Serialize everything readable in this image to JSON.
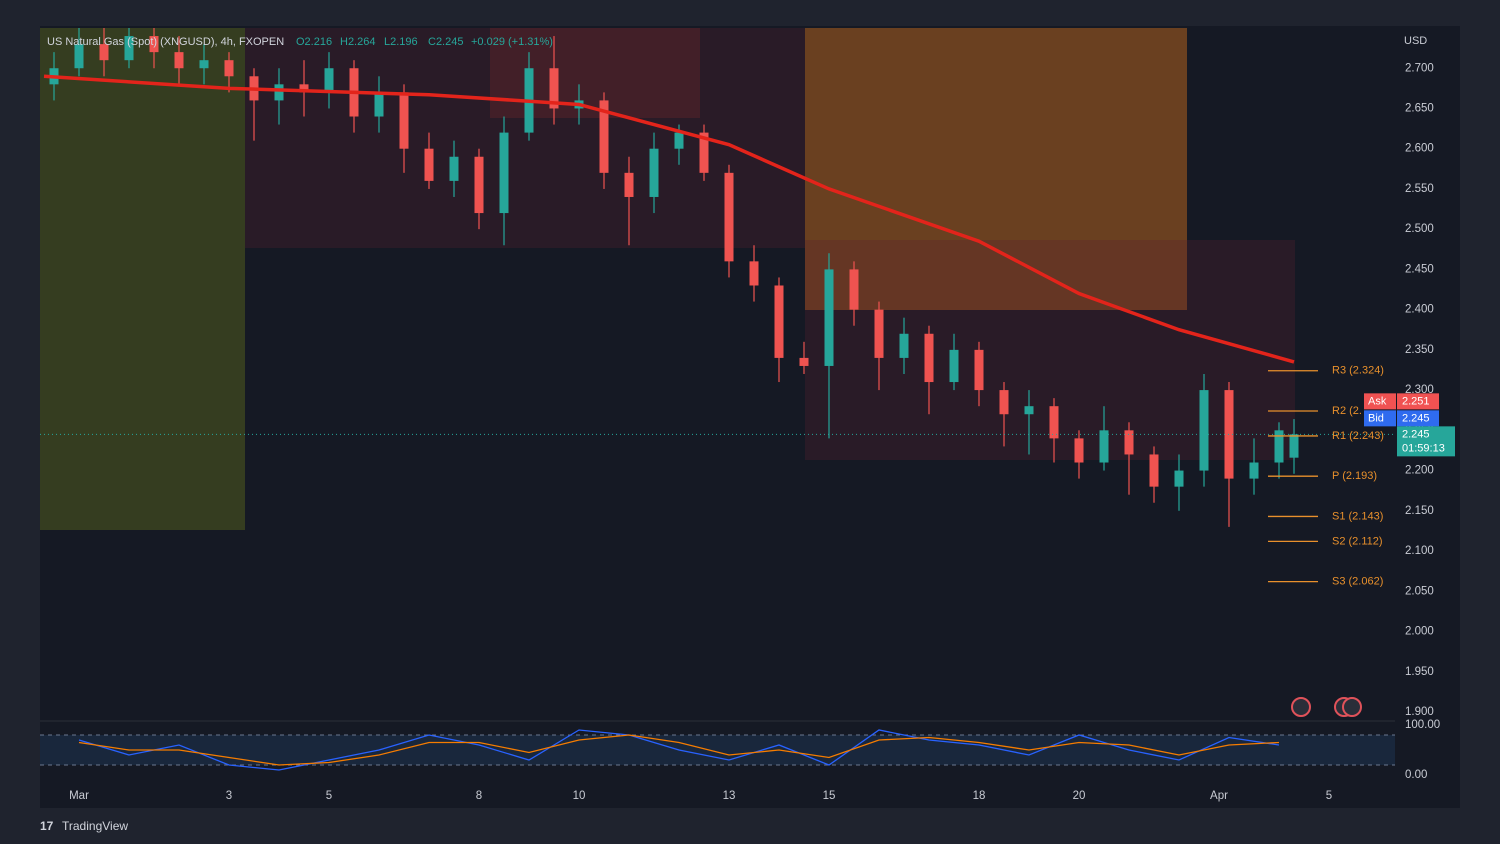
{
  "chart_data": {
    "type": "candlestick",
    "title": "US Natural Gas (Spot) (XNGUSD), 4h, FXOPEN",
    "ohlc_legend": {
      "open": "O2.216",
      "high": "H2.264",
      "low": "L2.196",
      "close": "C2.245",
      "change": "+0.029 (+1.31%)"
    },
    "x": [
      -0.5,
      0,
      0.5,
      1,
      1.5,
      2,
      2.5,
      3,
      3.5,
      4,
      4.5,
      5,
      5.5,
      6,
      6.5,
      7,
      7.5,
      8,
      8.5,
      9,
      9.5,
      10,
      10.5,
      11,
      11.5,
      12,
      12.5,
      13,
      13.5,
      14,
      14.5,
      15,
      15.5,
      16,
      16.5,
      17,
      17.5,
      18,
      18.5,
      19,
      19.5,
      20,
      20.5,
      21,
      21.5,
      22,
      22.5,
      23,
      23.5,
      24,
      24.3
    ],
    "open": [
      2.68,
      2.7,
      2.73,
      2.71,
      2.74,
      2.72,
      2.7,
      2.71,
      2.69,
      2.66,
      2.68,
      2.67,
      2.7,
      2.64,
      2.67,
      2.6,
      2.56,
      2.59,
      2.52,
      2.62,
      2.7,
      2.65,
      2.66,
      2.57,
      2.54,
      2.6,
      2.62,
      2.57,
      2.46,
      2.43,
      2.34,
      2.33,
      2.45,
      2.4,
      2.34,
      2.37,
      2.31,
      2.35,
      2.3,
      2.27,
      2.28,
      2.24,
      2.21,
      2.25,
      2.22,
      2.18,
      2.2,
      2.3,
      2.19,
      2.21,
      2.216
    ],
    "high": [
      2.72,
      2.75,
      2.75,
      2.75,
      2.75,
      2.74,
      2.73,
      2.72,
      2.7,
      2.7,
      2.71,
      2.72,
      2.71,
      2.69,
      2.68,
      2.62,
      2.61,
      2.6,
      2.64,
      2.72,
      2.74,
      2.68,
      2.67,
      2.59,
      2.62,
      2.63,
      2.63,
      2.58,
      2.48,
      2.44,
      2.36,
      2.47,
      2.46,
      2.41,
      2.39,
      2.38,
      2.37,
      2.36,
      2.31,
      2.3,
      2.29,
      2.25,
      2.28,
      2.26,
      2.23,
      2.22,
      2.32,
      2.31,
      2.24,
      2.26,
      2.264
    ],
    "low": [
      2.66,
      2.69,
      2.69,
      2.7,
      2.7,
      2.68,
      2.68,
      2.67,
      2.61,
      2.63,
      2.64,
      2.65,
      2.62,
      2.62,
      2.57,
      2.55,
      2.54,
      2.5,
      2.48,
      2.61,
      2.63,
      2.63,
      2.55,
      2.48,
      2.52,
      2.58,
      2.56,
      2.44,
      2.41,
      2.31,
      2.32,
      2.24,
      2.38,
      2.3,
      2.32,
      2.27,
      2.3,
      2.28,
      2.23,
      2.22,
      2.21,
      2.19,
      2.2,
      2.17,
      2.16,
      2.15,
      2.18,
      2.13,
      2.17,
      2.19,
      2.196
    ],
    "close": [
      2.7,
      2.73,
      2.71,
      2.74,
      2.72,
      2.7,
      2.71,
      2.69,
      2.66,
      2.68,
      2.67,
      2.7,
      2.64,
      2.67,
      2.6,
      2.56,
      2.59,
      2.52,
      2.62,
      2.7,
      2.65,
      2.66,
      2.57,
      2.54,
      2.6,
      2.62,
      2.57,
      2.46,
      2.43,
      2.34,
      2.33,
      2.45,
      2.4,
      2.34,
      2.37,
      2.31,
      2.35,
      2.3,
      2.27,
      2.28,
      2.24,
      2.21,
      2.25,
      2.22,
      2.18,
      2.2,
      2.3,
      2.19,
      2.21,
      2.25,
      2.245
    ],
    "up_color": "#26a69a",
    "down_color": "#ef5350",
    "xlim": [
      -0.78,
      26.32
    ],
    "xticks": [
      {
        "value": 0,
        "label": "Mar"
      },
      3,
      5,
      8,
      10,
      13,
      15,
      18,
      20,
      {
        "value": 22.8,
        "label": "Apr"
      },
      {
        "value": 25,
        "label": "5"
      }
    ],
    "ylim": [
      1.89,
      2.75
    ],
    "yticks": [
      {
        "value": 1.9,
        "label": "1.900"
      },
      {
        "value": 1.95,
        "label": "1.950"
      },
      {
        "value": 2.0,
        "label": "2.000"
      },
      {
        "value": 2.05,
        "label": "2.050"
      },
      {
        "value": 2.1,
        "label": "2.100"
      },
      {
        "value": 2.15,
        "label": "2.150"
      },
      {
        "value": 2.2,
        "label": "2.200"
      },
      {
        "value": 2.25,
        "label": "2.250"
      },
      {
        "value": 2.3,
        "label": "2.300"
      },
      {
        "value": 2.35,
        "label": "2.350"
      },
      {
        "value": 2.4,
        "label": "2.400"
      },
      {
        "value": 2.45,
        "label": "2.450"
      },
      {
        "value": 2.5,
        "label": "2.500"
      },
      {
        "value": 2.55,
        "label": "2.550"
      },
      {
        "value": 2.6,
        "label": "2.600"
      },
      {
        "value": 2.65,
        "label": "2.650"
      },
      {
        "value": 2.7,
        "label": "2.700"
      }
    ],
    "y_unit": "USD",
    "moving_average": {
      "color": "#e3241b",
      "x": [
        -0.7,
        3,
        7,
        10,
        13,
        15,
        18,
        20,
        22,
        24.3
      ],
      "values": [
        2.69,
        2.675,
        2.667,
        2.655,
        2.605,
        2.55,
        2.485,
        2.42,
        2.375,
        2.335
      ]
    },
    "pivots": [
      {
        "value": 2.324,
        "label": "R3 (2.324)"
      },
      {
        "value": 2.274,
        "label": "R2 (2."
      },
      {
        "value": 2.243,
        "label": "R1 (2.243)"
      },
      {
        "value": 2.193,
        "label": "P (2.193)"
      },
      {
        "value": 2.143,
        "label": "S1 (2.143)"
      },
      {
        "value": 2.112,
        "label": "S2 (2.112)"
      },
      {
        "value": 2.062,
        "label": "S3 (2.062)"
      }
    ],
    "pivot_color": "#e8902c",
    "ask": {
      "label": "Ask",
      "value": 2.251,
      "color": "#f05252"
    },
    "bid": {
      "label": "Bid",
      "value": 2.245,
      "color": "#2f6bef"
    },
    "countdown": "01:59:13",
    "oscillator": {
      "ylim": [
        0,
        100
      ],
      "yticks": [
        {
          "value": 100,
          "label": "100.00"
        },
        {
          "value": 0,
          "label": "0.00"
        }
      ],
      "levels": [
        80,
        20
      ],
      "x": [
        0,
        1,
        2,
        3,
        4,
        5,
        6,
        7,
        8,
        9,
        10,
        11,
        12,
        13,
        14,
        15,
        16,
        17,
        18,
        19,
        20,
        21,
        22,
        23,
        24
      ],
      "series": [
        {
          "color": "#2962ff",
          "values": [
            70,
            40,
            60,
            20,
            10,
            30,
            50,
            80,
            60,
            30,
            90,
            80,
            50,
            30,
            60,
            20,
            90,
            70,
            60,
            40,
            80,
            50,
            30,
            75,
            60
          ]
        },
        {
          "color": "#f57c00",
          "values": [
            65,
            50,
            50,
            35,
            20,
            25,
            40,
            65,
            65,
            45,
            70,
            80,
            65,
            40,
            50,
            35,
            70,
            75,
            65,
            50,
            65,
            60,
            40,
            60,
            65
          ]
        }
      ]
    }
  },
  "brand": "TradingView"
}
